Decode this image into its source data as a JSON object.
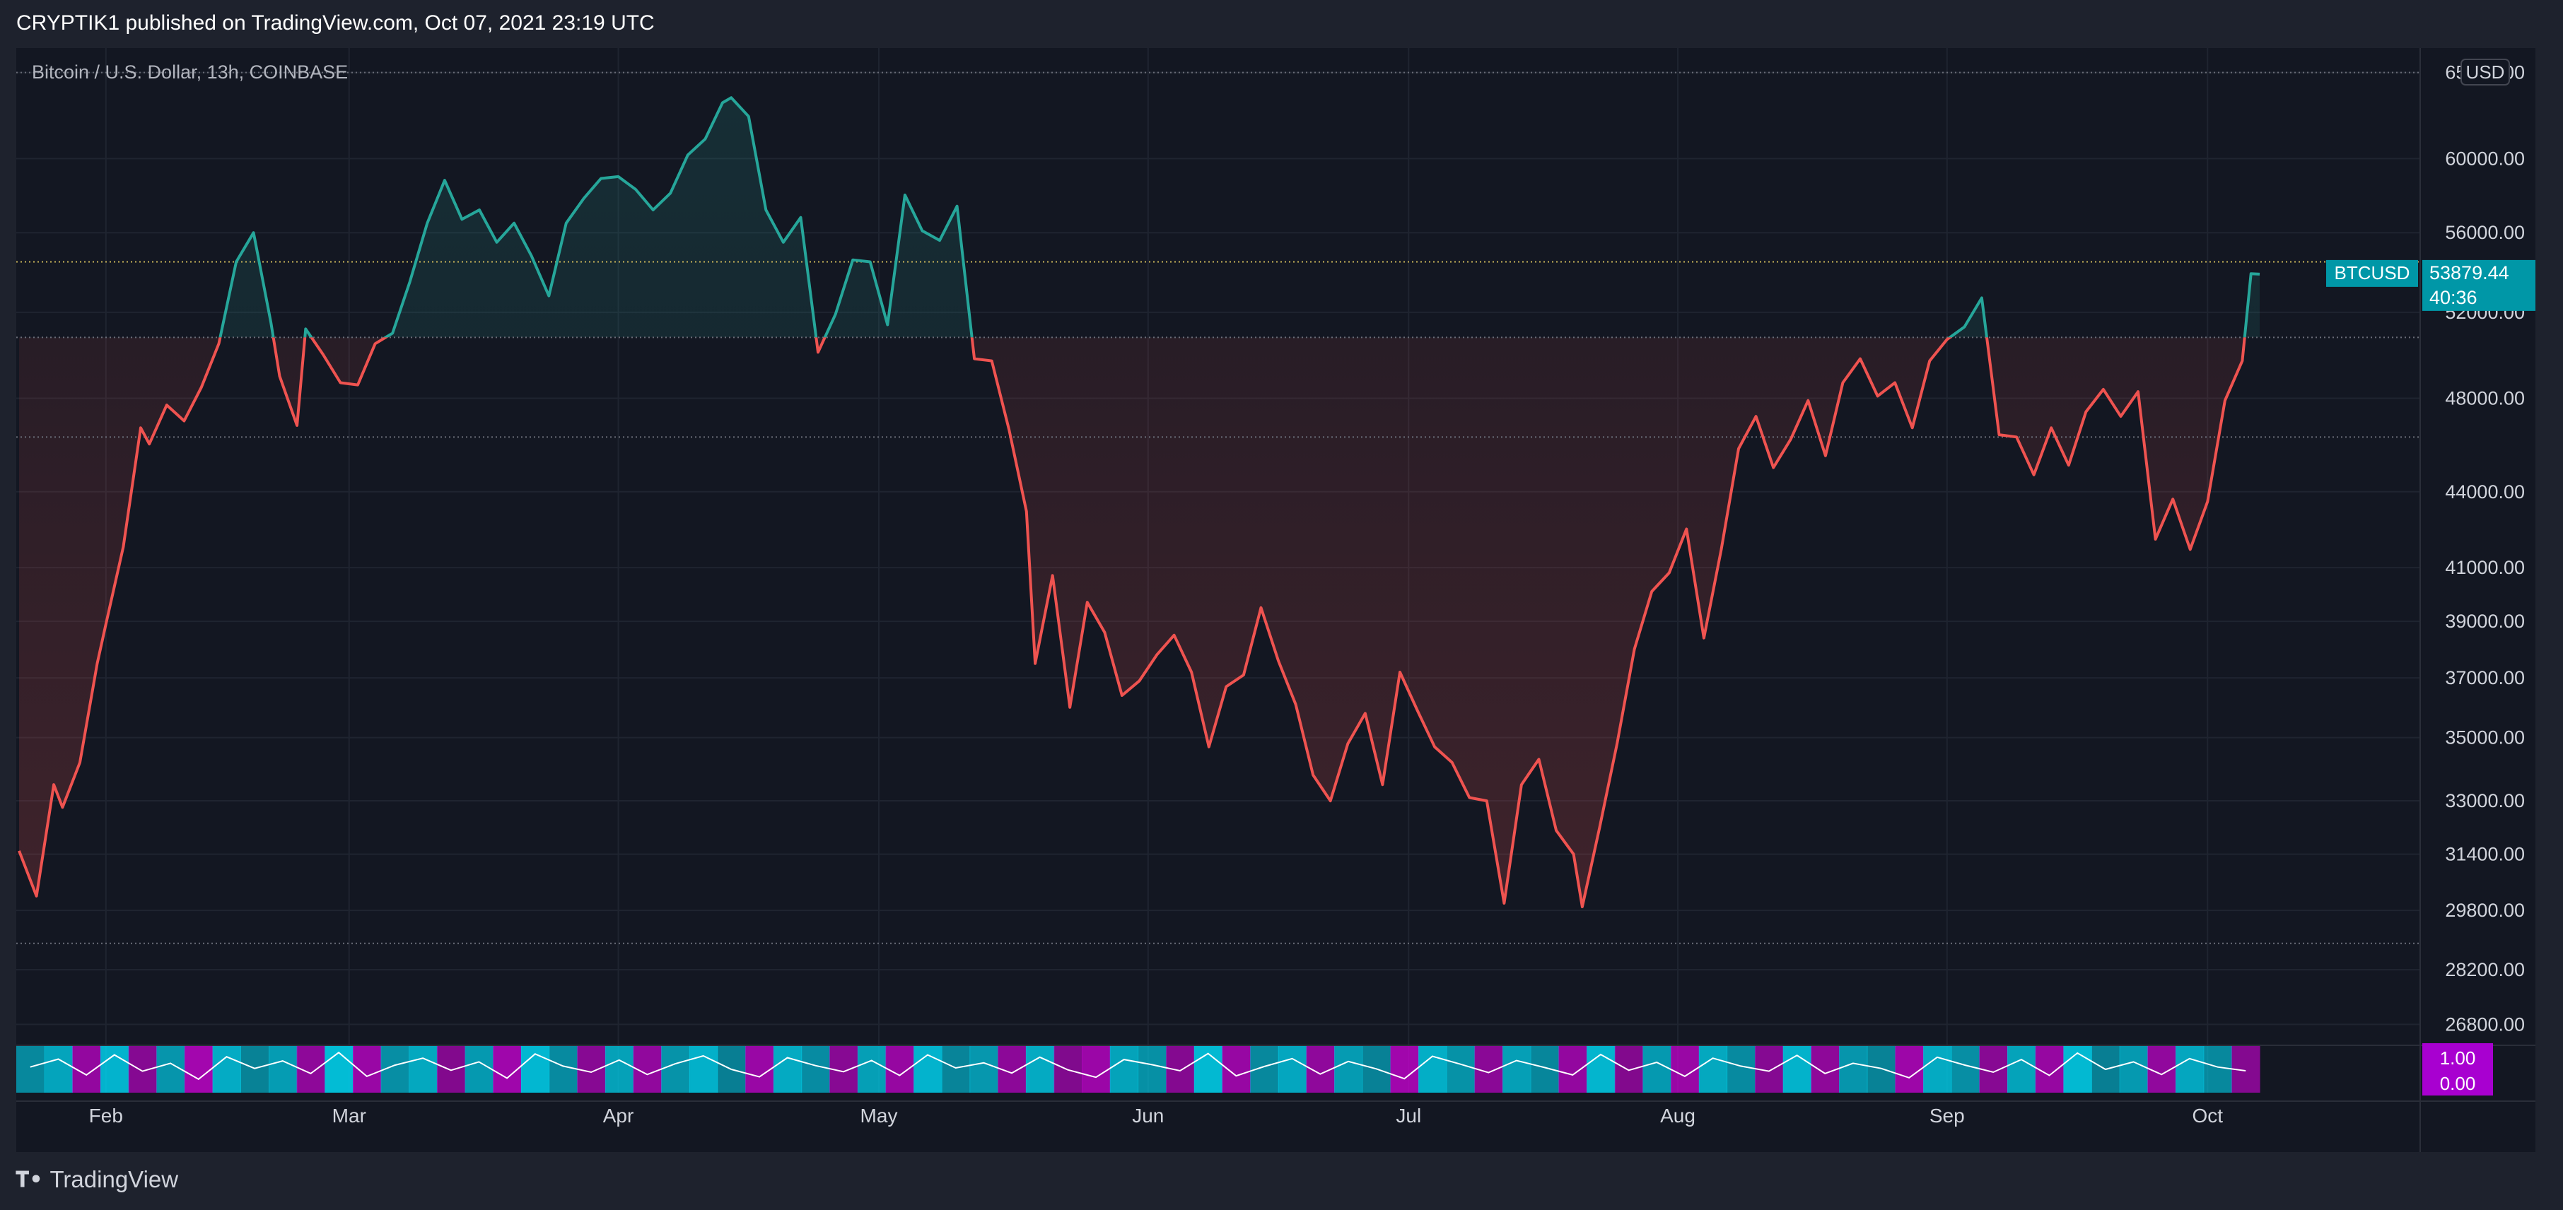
{
  "header": {
    "publisher_line": "CRYPTIK1 published on TradingView.com, Oct 07, 2021 23:19 UTC"
  },
  "footer": {
    "brand": "TradingView"
  },
  "colors": {
    "background": "#131722",
    "outer": "#1e222d",
    "up": "#26a69a",
    "down": "#ef5350",
    "price_tag": "#0097a7",
    "osc_cyan": "#00d4f0",
    "osc_magenta": "#d600e0",
    "osc_label": "#a800d0"
  },
  "chart_data": {
    "type": "line",
    "title": "Bitcoin / U.S. Dollar, 13h, COINBASE",
    "symbol": "BTCUSD",
    "currency": "USD",
    "last_price": "53879.44",
    "countdown": "40:36",
    "price_axis_labels": [
      "65000.00",
      "60000.00",
      "56000.00",
      "52000.00",
      "48000.00",
      "44000.00",
      "41000.00",
      "39000.00",
      "37000.00",
      "35000.00",
      "33000.00",
      "31400.00",
      "29800.00",
      "28200.00",
      "26800.00"
    ],
    "x_axis_labels": [
      "Feb",
      "Mar",
      "Apr",
      "May",
      "Jun",
      "Jul",
      "Aug",
      "Sep",
      "Oct"
    ],
    "x_axis_label_dates": [
      "2021-02-01",
      "2021-03-01",
      "2021-04-01",
      "2021-05-01",
      "2021-06-01",
      "2021-07-01",
      "2021-08-01",
      "2021-09-01",
      "2021-10-01"
    ],
    "x_range": [
      "2021-01-22",
      "2021-10-07"
    ],
    "y_range": [
      26300,
      66500
    ],
    "y_scale": "log",
    "base_level": 50800,
    "reference_levels": [
      65000,
      50800,
      46300,
      28900
    ],
    "last_price_line": 54500,
    "series": [
      {
        "x": [
          "2021-01-22",
          "2021-01-24",
          "2021-01-26",
          "2021-01-27",
          "2021-01-29",
          "2021-01-31",
          "2021-02-01",
          "2021-02-03",
          "2021-02-05",
          "2021-02-06",
          "2021-02-08",
          "2021-02-10",
          "2021-02-12",
          "2021-02-14",
          "2021-02-16",
          "2021-02-18",
          "2021-02-20",
          "2021-02-21",
          "2021-02-23",
          "2021-02-24",
          "2021-02-26",
          "2021-02-28",
          "2021-03-02",
          "2021-03-04",
          "2021-03-06",
          "2021-03-08",
          "2021-03-10",
          "2021-03-12",
          "2021-03-14",
          "2021-03-16",
          "2021-03-18",
          "2021-03-20",
          "2021-03-22",
          "2021-03-24",
          "2021-03-26",
          "2021-03-28",
          "2021-03-30",
          "2021-04-01",
          "2021-04-03",
          "2021-04-05",
          "2021-04-07",
          "2021-04-09",
          "2021-04-11",
          "2021-04-13",
          "2021-04-14",
          "2021-04-16",
          "2021-04-18",
          "2021-04-20",
          "2021-04-22",
          "2021-04-24",
          "2021-04-26",
          "2021-04-28",
          "2021-04-30",
          "2021-05-02",
          "2021-05-04",
          "2021-05-06",
          "2021-05-08",
          "2021-05-10",
          "2021-05-12",
          "2021-05-14",
          "2021-05-16",
          "2021-05-18",
          "2021-05-19",
          "2021-05-21",
          "2021-05-23",
          "2021-05-25",
          "2021-05-27",
          "2021-05-29",
          "2021-05-31",
          "2021-06-02",
          "2021-06-04",
          "2021-06-06",
          "2021-06-08",
          "2021-06-10",
          "2021-06-12",
          "2021-06-14",
          "2021-06-16",
          "2021-06-18",
          "2021-06-20",
          "2021-06-22",
          "2021-06-24",
          "2021-06-26",
          "2021-06-28",
          "2021-06-30",
          "2021-07-02",
          "2021-07-04",
          "2021-07-06",
          "2021-07-08",
          "2021-07-10",
          "2021-07-12",
          "2021-07-14",
          "2021-07-16",
          "2021-07-18",
          "2021-07-20",
          "2021-07-21",
          "2021-07-23",
          "2021-07-25",
          "2021-07-27",
          "2021-07-29",
          "2021-07-31",
          "2021-08-02",
          "2021-08-04",
          "2021-08-06",
          "2021-08-08",
          "2021-08-10",
          "2021-08-12",
          "2021-08-14",
          "2021-08-16",
          "2021-08-18",
          "2021-08-20",
          "2021-08-22",
          "2021-08-24",
          "2021-08-26",
          "2021-08-28",
          "2021-08-30",
          "2021-09-01",
          "2021-09-03",
          "2021-09-05",
          "2021-09-07",
          "2021-09-09",
          "2021-09-11",
          "2021-09-13",
          "2021-09-15",
          "2021-09-17",
          "2021-09-19",
          "2021-09-21",
          "2021-09-23",
          "2021-09-25",
          "2021-09-27",
          "2021-09-29",
          "2021-10-01",
          "2021-10-03",
          "2021-10-05",
          "2021-10-06",
          "2021-10-07"
        ],
        "y": [
          31500,
          30200,
          33500,
          32800,
          34200,
          37500,
          38900,
          41800,
          46700,
          46000,
          47700,
          47000,
          48500,
          50500,
          54500,
          56000,
          51500,
          49000,
          46800,
          51200,
          50000,
          48700,
          48600,
          50500,
          51000,
          53500,
          56500,
          58800,
          56700,
          57200,
          55500,
          56500,
          54800,
          52800,
          56500,
          57800,
          58900,
          59000,
          58300,
          57200,
          58100,
          60200,
          61100,
          63200,
          63500,
          62400,
          57200,
          55500,
          56800,
          50100,
          51900,
          54600,
          54500,
          51400,
          58000,
          56100,
          55600,
          57400,
          49800,
          49700,
          46600,
          43200,
          37500,
          40700,
          36000,
          39700,
          38600,
          36400,
          36900,
          37800,
          38500,
          37200,
          34700,
          36700,
          37100,
          39500,
          37600,
          36100,
          33800,
          33000,
          34800,
          35800,
          33500,
          37200,
          35900,
          34700,
          34200,
          33100,
          33000,
          30000,
          33500,
          34300,
          32100,
          31400,
          29900,
          32200,
          34800,
          38000,
          40100,
          40800,
          42500,
          38400,
          41700,
          45800,
          47200,
          45000,
          46200,
          47900,
          45500,
          48700,
          49800,
          48100,
          48700,
          46700,
          49700,
          50700,
          51300,
          52700,
          46400,
          46300,
          44700,
          46700,
          45100,
          47400,
          48400,
          47200,
          48300,
          42100,
          43700,
          41700,
          43600,
          47900,
          49700,
          53900,
          53879
        ]
      }
    ],
    "oscillator": {
      "labels": [
        "1.00",
        "0.00"
      ],
      "values": [
        0.55,
        0.72,
        0.38,
        0.81,
        0.46,
        0.63,
        0.29,
        0.77,
        0.52,
        0.68,
        0.41,
        0.86,
        0.35,
        0.59,
        0.74,
        0.48,
        0.66,
        0.31,
        0.83,
        0.57,
        0.44,
        0.7,
        0.39,
        0.62,
        0.79,
        0.5,
        0.34,
        0.75,
        0.58,
        0.45,
        0.69,
        0.37,
        0.81,
        0.53,
        0.64,
        0.42,
        0.76,
        0.49,
        0.33,
        0.71,
        0.6,
        0.47,
        0.84,
        0.36,
        0.56,
        0.73,
        0.4,
        0.67,
        0.51,
        0.3,
        0.78,
        0.61,
        0.43,
        0.69,
        0.54,
        0.38,
        0.82,
        0.48,
        0.65,
        0.35,
        0.74,
        0.57,
        0.46,
        0.8,
        0.41,
        0.63,
        0.52,
        0.32,
        0.76,
        0.59,
        0.44,
        0.71,
        0.37,
        0.85,
        0.5,
        0.66,
        0.39,
        0.73,
        0.55,
        0.47
      ]
    }
  }
}
